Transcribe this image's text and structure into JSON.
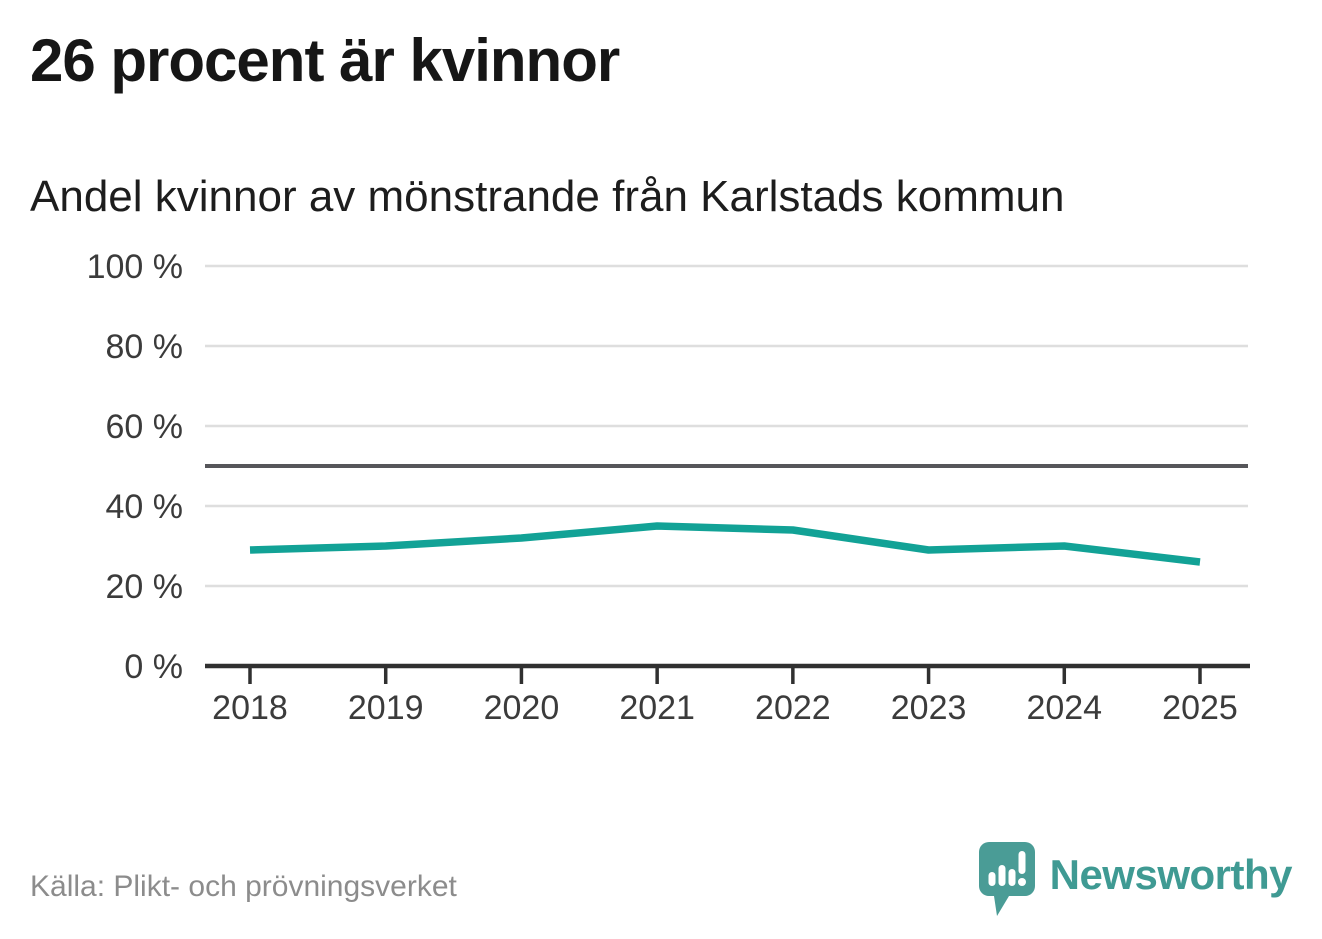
{
  "header": {
    "title": "26 procent är kvinnor",
    "subtitle": "Andel kvinnor av mönstrande från Karlstads kommun"
  },
  "footer": {
    "source": "Källa: Plikt- och prövningsverket",
    "brand": "Newsworthy"
  },
  "colors": {
    "line": "#12a296",
    "reference_line": "#56565a",
    "gridline": "#dedede",
    "axis": "#303030",
    "tick_label": "#3b3b3b",
    "title_text": "#161616",
    "source_text": "#8c8c8c",
    "brand": "#3f9a93",
    "brand_icon": "#4a9c96"
  },
  "chart_data": {
    "type": "line",
    "title": "26 procent är kvinnor",
    "subtitle": "Andel kvinnor av mönstrande från Karlstads kommun",
    "x": [
      "2018",
      "2019",
      "2020",
      "2021",
      "2022",
      "2023",
      "2024",
      "2025"
    ],
    "series": [
      {
        "name": "Andel kvinnor av mönstrande, Karlstads kommun",
        "values": [
          29,
          30,
          32,
          35,
          34,
          29,
          30,
          26
        ]
      }
    ],
    "unit": "%",
    "ylim": [
      0,
      100
    ],
    "yticks": [
      0,
      20,
      40,
      60,
      80,
      100
    ],
    "ytick_labels": [
      "0 %",
      "20 %",
      "40 %",
      "60 %",
      "80 %",
      "100 %"
    ],
    "reference_line": 50,
    "grid": true,
    "legend": "none",
    "xlabel": "",
    "ylabel": ""
  }
}
